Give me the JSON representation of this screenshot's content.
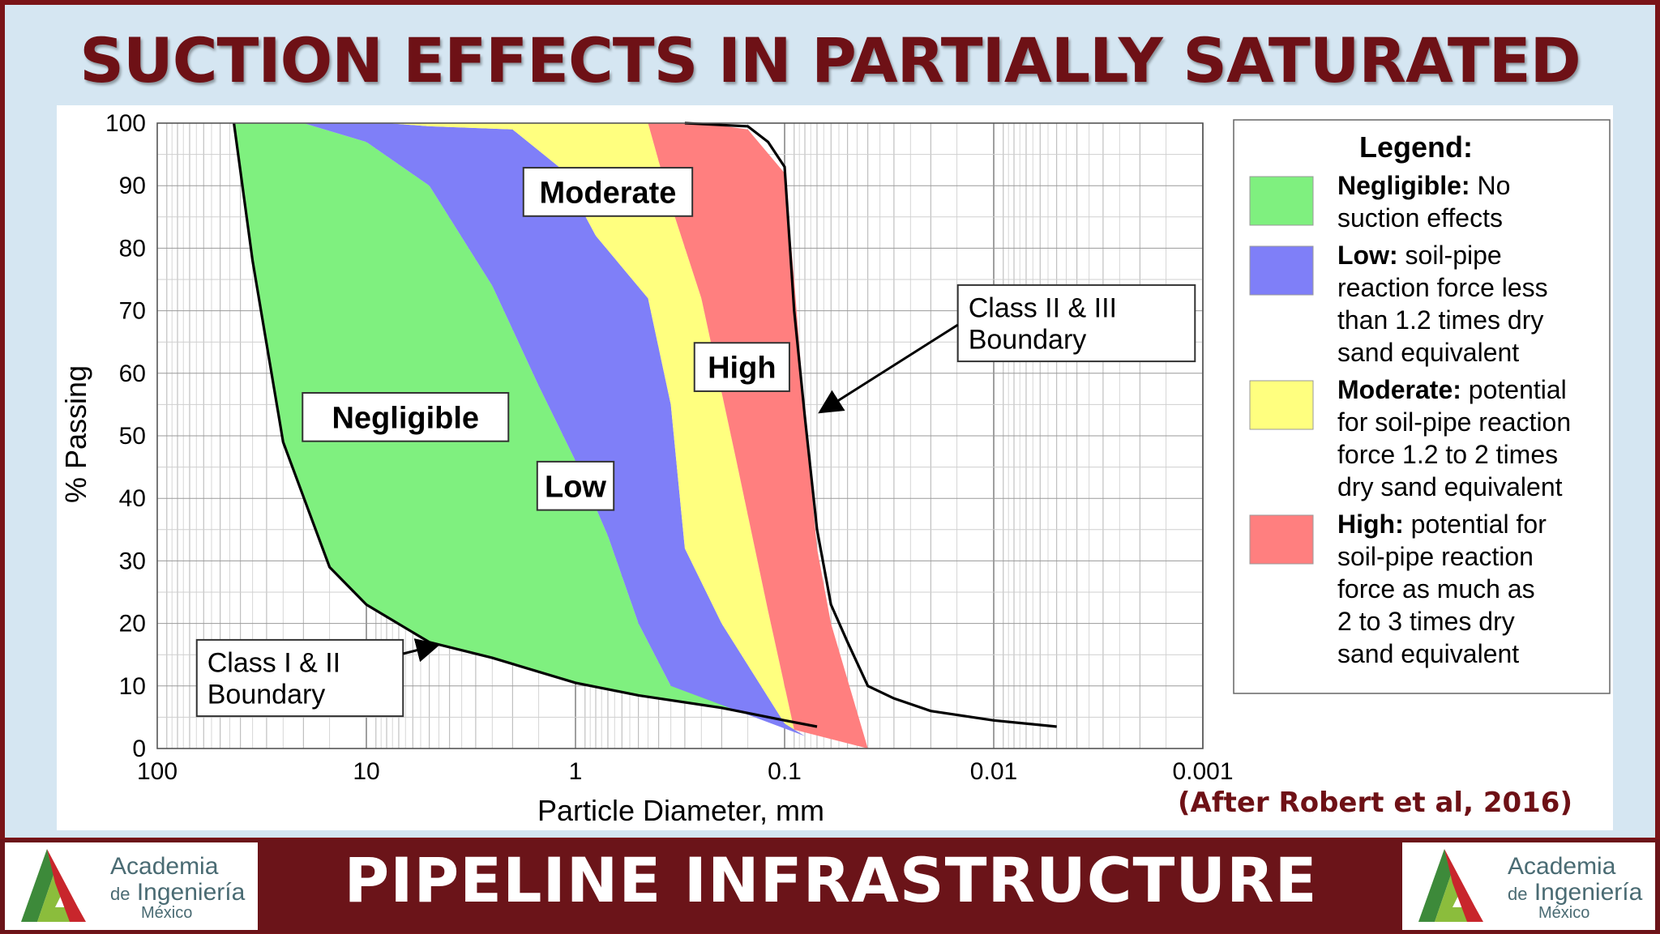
{
  "title": "SUCTION EFFECTS IN PARTIALLY SATURATED SOILS",
  "footer": {
    "title": "PIPELINE INFRASTRUCTURE",
    "logo_line1": "Academia",
    "logo_line2_prefix": "de",
    "logo_line2": "Ingeniería",
    "logo_line3": "México"
  },
  "citation": "(After Robert et al, 2016)",
  "chart_data": {
    "type": "area",
    "xlabel": "Particle Diameter, mm",
    "ylabel": "% Passing",
    "x_scale": "log",
    "x_reversed": true,
    "xlim": [
      100,
      0.001
    ],
    "ylim": [
      0,
      100
    ],
    "x_tick_labels": [
      "100",
      "10",
      "1",
      "0.1",
      "0.01",
      "0.001"
    ],
    "y_ticks": [
      0,
      10,
      20,
      30,
      40,
      50,
      60,
      70,
      80,
      90,
      100
    ],
    "grid": true,
    "legend_position": "right",
    "regions": [
      {
        "name": "Negligible",
        "color": "#7ff07f",
        "label_at": [
          6.5,
          53
        ]
      },
      {
        "name": "Low",
        "color": "#7f7ff8",
        "label_at": [
          1,
          42
        ]
      },
      {
        "name": "Moderate",
        "color": "#ffff7f",
        "label_at": [
          0.7,
          89
        ]
      },
      {
        "name": "High",
        "color": "#ff7f7f",
        "label_at": [
          0.16,
          61
        ]
      }
    ],
    "boundaries": {
      "class_1_2": [
        [
          43,
          100
        ],
        [
          35,
          78
        ],
        [
          25,
          49
        ],
        [
          15,
          29
        ],
        [
          10,
          23
        ],
        [
          5,
          17
        ],
        [
          2.5,
          14.5
        ],
        [
          1,
          10.5
        ],
        [
          0.5,
          8.5
        ],
        [
          0.2,
          6.5
        ],
        [
          0.1,
          4.5
        ],
        [
          0.07,
          3.5
        ]
      ],
      "neg_low": [
        [
          20,
          100
        ],
        [
          10,
          97
        ],
        [
          5,
          90
        ],
        [
          2.5,
          74
        ],
        [
          1.5,
          58
        ],
        [
          1,
          46
        ],
        [
          0.7,
          34
        ],
        [
          0.5,
          20
        ],
        [
          0.35,
          10
        ]
      ],
      "low_mod": [
        [
          8,
          100
        ],
        [
          5,
          99.5
        ],
        [
          2,
          99
        ],
        [
          1.2,
          93
        ],
        [
          0.8,
          82
        ],
        [
          0.45,
          72
        ],
        [
          0.35,
          55
        ],
        [
          0.3,
          32
        ],
        [
          0.2,
          20
        ],
        [
          0.1,
          4
        ],
        [
          0.08,
          2
        ]
      ],
      "mod_high": [
        [
          2,
          100
        ],
        [
          0.7,
          100
        ],
        [
          0.45,
          100
        ],
        [
          0.35,
          87
        ],
        [
          0.25,
          72
        ],
        [
          0.17,
          46
        ],
        [
          0.12,
          22
        ],
        [
          0.09,
          3
        ]
      ],
      "high_edge": [
        [
          0.4,
          100
        ],
        [
          0.25,
          100
        ],
        [
          0.15,
          99
        ],
        [
          0.1,
          92
        ],
        [
          0.09,
          75
        ],
        [
          0.08,
          53
        ],
        [
          0.07,
          32
        ],
        [
          0.06,
          20
        ],
        [
          0.04,
          0
        ]
      ],
      "class_2_3": [
        [
          0.3,
          100
        ],
        [
          0.15,
          99.5
        ],
        [
          0.12,
          97
        ],
        [
          0.1,
          93
        ],
        [
          0.09,
          70
        ],
        [
          0.08,
          53
        ],
        [
          0.07,
          35
        ],
        [
          0.06,
          23
        ],
        [
          0.05,
          17
        ],
        [
          0.04,
          10
        ],
        [
          0.03,
          8
        ],
        [
          0.02,
          6
        ],
        [
          0.01,
          4.5
        ],
        [
          0.005,
          3.5
        ]
      ]
    },
    "annotations": [
      {
        "label": "Class I & II Boundary",
        "line1": "Class I & II",
        "line2": "Boundary"
      },
      {
        "label": "Class II & III Boundary",
        "line1": "Class II & III",
        "line2": "Boundary"
      }
    ],
    "legend": {
      "title": "Legend:",
      "items": [
        {
          "bold": "Negligible:",
          "lines": [
            "No",
            "suction effects"
          ],
          "color": "#7ff07f"
        },
        {
          "bold": "Low:",
          "lines": [
            "soil-pipe",
            "reaction force less",
            "than 1.2 times dry",
            "sand equivalent"
          ],
          "color": "#7f7ff8"
        },
        {
          "bold": "Moderate:",
          "lines": [
            "potential",
            "for soil-pipe reaction",
            "force 1.2 to 2 times",
            "dry sand equivalent"
          ],
          "color": "#ffff7f"
        },
        {
          "bold": "High:",
          "lines": [
            "potential for",
            "soil-pipe reaction",
            "force as much as",
            "2 to 3 times dry",
            "sand equivalent"
          ],
          "color": "#ff7f7f"
        }
      ]
    }
  }
}
